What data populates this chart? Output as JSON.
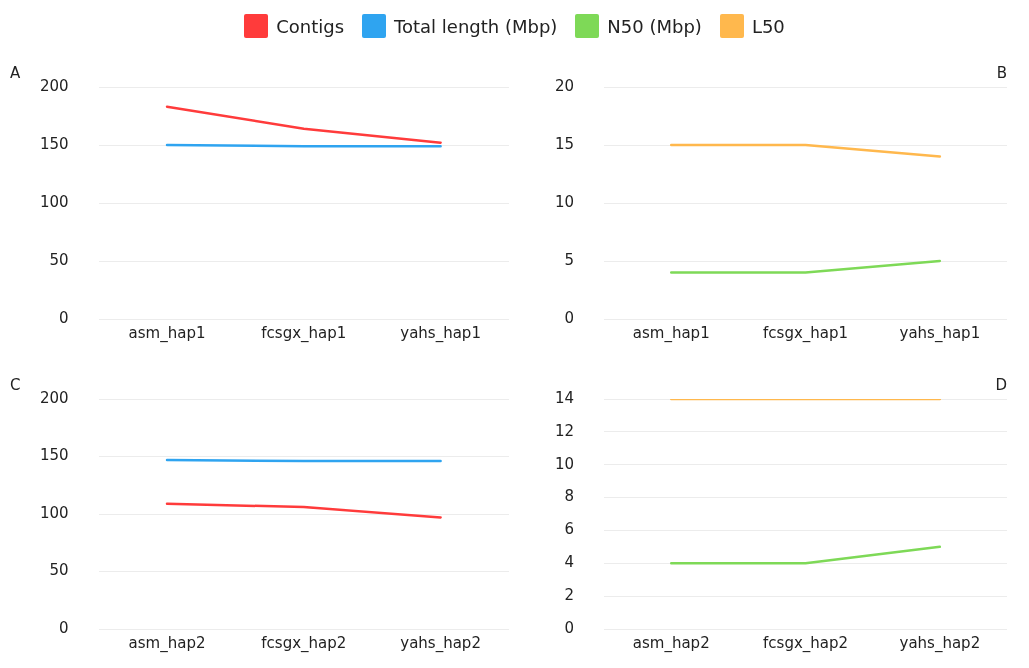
{
  "chart_data": [
    {
      "type": "line",
      "title": "A",
      "categories": [
        "asm_hap1",
        "fcsgx_hap1",
        "yahs_hap1"
      ],
      "ylim": [
        0,
        200
      ],
      "yticks": [
        0,
        50,
        100,
        150,
        200
      ],
      "grid": "y",
      "legend": "top",
      "marker": "none",
      "series": [
        {
          "name": "Contigs",
          "color": "#ff3b3b",
          "values": [
            183,
            164,
            152
          ]
        },
        {
          "name": "Total length (Mbp)",
          "color": "#2fa4f0",
          "values": [
            150,
            149,
            149
          ]
        }
      ]
    },
    {
      "type": "line",
      "title": "B",
      "categories": [
        "asm_hap1",
        "fcsgx_hap1",
        "yahs_hap1"
      ],
      "ylim": [
        0,
        20
      ],
      "yticks": [
        0,
        5,
        10,
        15,
        20
      ],
      "grid": "y",
      "legend": "top",
      "marker": "none",
      "series": [
        {
          "name": "N50 (Mbp)",
          "color": "#7ed957",
          "values": [
            4,
            4,
            5
          ]
        },
        {
          "name": "L50",
          "color": "#ffb84d",
          "values": [
            15,
            15,
            14
          ]
        }
      ]
    },
    {
      "type": "line",
      "title": "C",
      "categories": [
        "asm_hap2",
        "fcsgx_hap2",
        "yahs_hap2"
      ],
      "ylim": [
        0,
        200
      ],
      "yticks": [
        0,
        50,
        100,
        150,
        200
      ],
      "grid": "y",
      "legend": "top",
      "marker": "none",
      "series": [
        {
          "name": "Contigs",
          "color": "#ff3b3b",
          "values": [
            109,
            106,
            97
          ]
        },
        {
          "name": "Total length (Mbp)",
          "color": "#2fa4f0",
          "values": [
            147,
            146,
            146
          ]
        }
      ]
    },
    {
      "type": "line",
      "title": "D",
      "categories": [
        "asm_hap2",
        "fcsgx_hap2",
        "yahs_hap2"
      ],
      "ylim": [
        0,
        14
      ],
      "yticks": [
        0,
        2,
        4,
        6,
        8,
        10,
        12,
        14
      ],
      "grid": "y",
      "legend": "top",
      "marker": "none",
      "series": [
        {
          "name": "N50 (Mbp)",
          "color": "#7ed957",
          "values": [
            4,
            4,
            5
          ]
        },
        {
          "name": "L50",
          "color": "#ffb84d",
          "values": [
            14,
            14,
            14
          ]
        }
      ]
    }
  ]
}
